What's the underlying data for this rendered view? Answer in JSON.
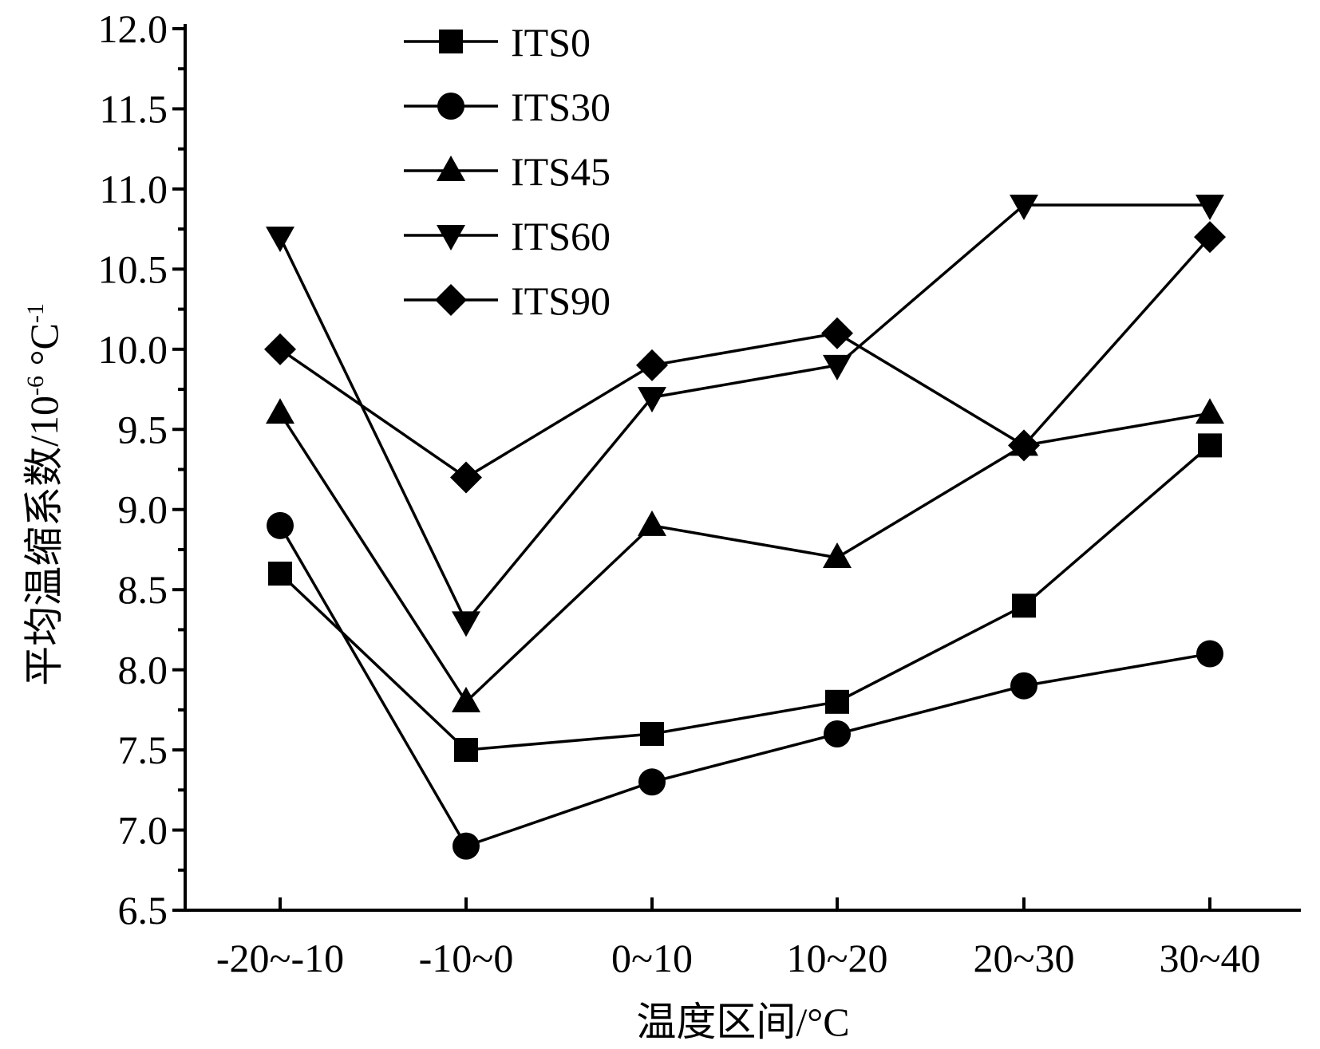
{
  "chart_data": {
    "type": "line",
    "title": "",
    "xlabel": "温度区间/°C",
    "ylabel_main": "平均温缩系数/10",
    "ylabel_exp1": "-6",
    "ylabel_mid": " °C",
    "ylabel_exp2": "-1",
    "categories": [
      "-20~-10",
      "-10~0",
      "0~10",
      "10~20",
      "20~30",
      "30~40"
    ],
    "ylim": [
      6.5,
      12.0
    ],
    "yticks": [
      "6.5",
      "7.0",
      "7.5",
      "8.0",
      "8.5",
      "9.0",
      "9.5",
      "10.0",
      "10.5",
      "11.0",
      "11.5",
      "12.0"
    ],
    "grid": false,
    "legend_position": "top-left",
    "series": [
      {
        "name": "ITS0",
        "marker": "square",
        "values": [
          8.6,
          7.5,
          7.6,
          7.8,
          8.4,
          9.4
        ]
      },
      {
        "name": "ITS30",
        "marker": "circle",
        "values": [
          8.9,
          6.9,
          7.3,
          7.6,
          7.9,
          8.1
        ]
      },
      {
        "name": "ITS45",
        "marker": "triangle-up",
        "values": [
          9.6,
          7.8,
          8.9,
          8.7,
          9.4,
          9.6
        ]
      },
      {
        "name": "ITS60",
        "marker": "triangle-down",
        "values": [
          10.7,
          8.3,
          9.7,
          9.9,
          10.9,
          10.9
        ]
      },
      {
        "name": "ITS90",
        "marker": "diamond",
        "values": [
          10.0,
          9.2,
          9.9,
          10.1,
          9.4,
          10.7
        ]
      }
    ],
    "colors": {
      "line": "#000000",
      "marker": "#000000",
      "background": "#ffffff"
    }
  }
}
